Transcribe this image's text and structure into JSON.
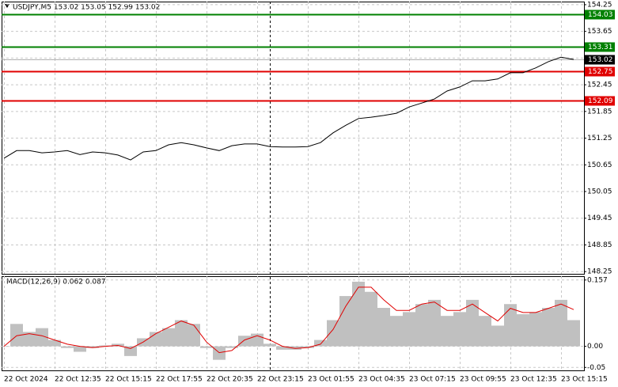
{
  "chart_data": [
    {
      "type": "line",
      "title": "USDJPY,M5  153.02 153.05 152.99 153.02",
      "categories": [
        "22 Oct 2024",
        null,
        null,
        null,
        "22 Oct 12:35",
        null,
        null,
        null,
        "22 Oct 15:15",
        null,
        null,
        null,
        "22 Oct 17:55",
        null,
        null,
        null,
        "22 Oct 20:35",
        null,
        null,
        null,
        "22 Oct 23:15",
        null,
        null,
        null,
        "23 Oct 01:55",
        null,
        null,
        null,
        "23 Oct 04:35",
        null,
        null,
        null,
        "23 Oct 07:15",
        null,
        null,
        null,
        "23 Oct 09:55",
        null,
        null,
        null,
        "23 Oct 12:35",
        null,
        null,
        null,
        "23 Oct 15:15",
        null
      ],
      "series": [
        {
          "color": "#000000",
          "values": [
            150.8,
            150.97,
            150.97,
            150.92,
            150.94,
            150.97,
            150.88,
            150.94,
            150.92,
            150.87,
            150.76,
            150.94,
            150.97,
            151.1,
            151.15,
            151.1,
            151.03,
            150.97,
            151.08,
            151.12,
            151.12,
            151.06,
            151.05,
            151.05,
            151.06,
            151.15,
            151.37,
            151.54,
            151.69,
            151.72,
            151.76,
            151.81,
            151.95,
            152.04,
            152.13,
            152.31,
            152.4,
            152.54,
            152.54,
            152.58,
            152.72,
            152.72,
            152.83,
            152.97,
            153.07,
            153.02
          ]
        }
      ],
      "levels": [
        {
          "value": 154.03,
          "color": "#008000"
        },
        {
          "value": 153.31,
          "color": "#008000"
        },
        {
          "value": 152.75,
          "color": "#e00000"
        },
        {
          "value": 152.09,
          "color": "#e00000"
        }
      ],
      "current_price": {
        "value": 153.02,
        "color": "#000000"
      },
      "ylim": [
        148.2,
        154.32
      ],
      "yticks": [
        154.25,
        153.65,
        153.05,
        152.45,
        151.85,
        151.25,
        150.65,
        150.05,
        149.45,
        148.85,
        148.25
      ],
      "grid": true
    },
    {
      "type": "macd",
      "title": "MACD(12,26,9) 0.062 0.087",
      "series": [
        {
          "color": "#c0c0c0",
          "values": [
            0.0,
            0.053,
            0.034,
            0.043,
            0.015,
            -0.004,
            -0.013,
            -0.004,
            0.002,
            0.006,
            -0.023,
            0.019,
            0.034,
            0.043,
            0.062,
            0.053,
            -0.004,
            -0.032,
            -0.004,
            0.025,
            0.03,
            0.006,
            -0.008,
            -0.008,
            -0.004,
            0.015,
            0.062,
            0.119,
            0.153,
            0.129,
            0.091,
            0.072,
            0.081,
            0.1,
            0.11,
            0.072,
            0.081,
            0.11,
            0.072,
            0.049,
            0.1,
            0.076,
            0.081,
            0.091,
            0.11,
            0.062
          ]
        },
        {
          "color": "#e00000",
          "values": [
            0.0,
            0.025,
            0.03,
            0.025,
            0.015,
            0.005,
            0.0,
            -0.003,
            0.0,
            0.002,
            -0.005,
            0.01,
            0.03,
            0.045,
            0.06,
            0.05,
            0.01,
            -0.015,
            -0.01,
            0.015,
            0.025,
            0.015,
            0.0,
            -0.005,
            -0.003,
            0.005,
            0.04,
            0.095,
            0.14,
            0.14,
            0.11,
            0.085,
            0.085,
            0.1,
            0.105,
            0.085,
            0.085,
            0.1,
            0.08,
            0.06,
            0.09,
            0.08,
            0.08,
            0.09,
            0.1,
            0.087
          ]
        }
      ],
      "ylim": [
        -0.057,
        0.166
      ],
      "yticks": [
        0.157,
        {
          "value": 0,
          "label": "0.00"
        },
        {
          "value": -0.05,
          "label": "-0.05"
        }
      ],
      "grid": true
    }
  ]
}
